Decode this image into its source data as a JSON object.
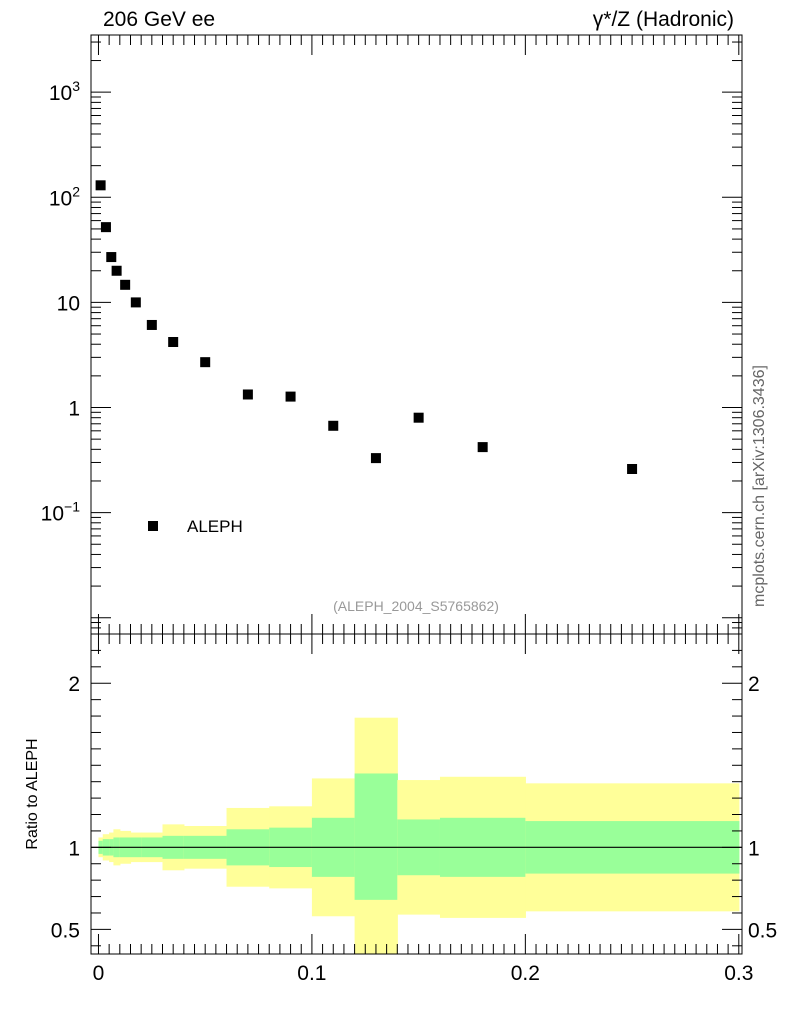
{
  "header": {
    "left_label": "206 GeV ee",
    "right_label": "γ*/Z (Hadronic)"
  },
  "side_note": "mcplots.cern.ch [arXiv:1306.3436]",
  "reference_note": "(ALEPH_2004_S5765862)",
  "colors": {
    "marker": "#000000",
    "band_inner": "#99ff99",
    "band_outer": "#ffff99",
    "reference_line": "#000000"
  },
  "chart_data": [
    {
      "type": "scatter",
      "name": "main-panel",
      "yscale": "log",
      "xlim": [
        -0.0035,
        0.3015
      ],
      "ylim": [
        0.007,
        3500
      ],
      "ytick_labels": [
        {
          "value": 0.1,
          "base": "10",
          "exp": "−1"
        },
        {
          "value": 1,
          "base": "1",
          "exp": ""
        },
        {
          "value": 10,
          "base": "10",
          "exp": ""
        },
        {
          "value": 100,
          "base": "10",
          "exp": "2"
        },
        {
          "value": 1000,
          "base": "10",
          "exp": "3"
        }
      ],
      "legend": {
        "label": "ALEPH",
        "position": "bottom-left"
      },
      "series": [
        {
          "name": "ALEPH",
          "x": [
            0.001,
            0.0035,
            0.006,
            0.0085,
            0.0125,
            0.0175,
            0.025,
            0.035,
            0.05,
            0.07,
            0.09,
            0.11,
            0.13,
            0.15,
            0.18,
            0.25
          ],
          "y": [
            130,
            52,
            27,
            20,
            14.7,
            10,
            6.1,
            4.2,
            2.7,
            1.33,
            1.27,
            0.67,
            0.33,
            0.8,
            0.42,
            0.26
          ]
        }
      ]
    },
    {
      "type": "area",
      "name": "ratio-panel",
      "ylabel": "Ratio to ALEPH",
      "xlim": [
        -0.0035,
        0.3015
      ],
      "ylim": [
        0.35,
        2.3
      ],
      "xtick_labels": [
        {
          "value": 0,
          "label": "0"
        },
        {
          "value": 0.1,
          "label": "0.1"
        },
        {
          "value": 0.2,
          "label": "0.2"
        },
        {
          "value": 0.3,
          "label": "0.3"
        }
      ],
      "ytick_labels": [
        {
          "value": 0.5,
          "label": "0.5"
        },
        {
          "value": 1,
          "label": "1"
        },
        {
          "value": 2,
          "label": "2"
        }
      ],
      "reference_value": 1,
      "bins": [
        {
          "x0": 0.0,
          "x1": 0.002,
          "inner": [
            0.96,
            1.04
          ],
          "outer": [
            0.94,
            1.06
          ]
        },
        {
          "x0": 0.002,
          "x1": 0.005,
          "inner": [
            0.95,
            1.05
          ],
          "outer": [
            0.92,
            1.08
          ]
        },
        {
          "x0": 0.005,
          "x1": 0.007,
          "inner": [
            0.95,
            1.05
          ],
          "outer": [
            0.91,
            1.09
          ]
        },
        {
          "x0": 0.007,
          "x1": 0.01,
          "inner": [
            0.94,
            1.06
          ],
          "outer": [
            0.89,
            1.11
          ]
        },
        {
          "x0": 0.01,
          "x1": 0.015,
          "inner": [
            0.94,
            1.06
          ],
          "outer": [
            0.9,
            1.1
          ]
        },
        {
          "x0": 0.015,
          "x1": 0.02,
          "inner": [
            0.94,
            1.06
          ],
          "outer": [
            0.91,
            1.09
          ]
        },
        {
          "x0": 0.02,
          "x1": 0.03,
          "inner": [
            0.94,
            1.06
          ],
          "outer": [
            0.91,
            1.09
          ]
        },
        {
          "x0": 0.03,
          "x1": 0.04,
          "inner": [
            0.93,
            1.07
          ],
          "outer": [
            0.86,
            1.14
          ]
        },
        {
          "x0": 0.04,
          "x1": 0.06,
          "inner": [
            0.93,
            1.07
          ],
          "outer": [
            0.87,
            1.13
          ]
        },
        {
          "x0": 0.06,
          "x1": 0.08,
          "inner": [
            0.89,
            1.11
          ],
          "outer": [
            0.76,
            1.24
          ]
        },
        {
          "x0": 0.08,
          "x1": 0.1,
          "inner": [
            0.88,
            1.12
          ],
          "outer": [
            0.75,
            1.25
          ]
        },
        {
          "x0": 0.1,
          "x1": 0.12,
          "inner": [
            0.82,
            1.18
          ],
          "outer": [
            0.58,
            1.42
          ]
        },
        {
          "x0": 0.12,
          "x1": 0.14,
          "inner": [
            0.68,
            1.45
          ],
          "outer": [
            0.3,
            1.79
          ]
        },
        {
          "x0": 0.14,
          "x1": 0.16,
          "inner": [
            0.83,
            1.17
          ],
          "outer": [
            0.59,
            1.41
          ]
        },
        {
          "x0": 0.16,
          "x1": 0.2,
          "inner": [
            0.82,
            1.18
          ],
          "outer": [
            0.57,
            1.43
          ]
        },
        {
          "x0": 0.2,
          "x1": 0.3,
          "inner": [
            0.84,
            1.16
          ],
          "outer": [
            0.61,
            1.39
          ]
        }
      ]
    }
  ]
}
